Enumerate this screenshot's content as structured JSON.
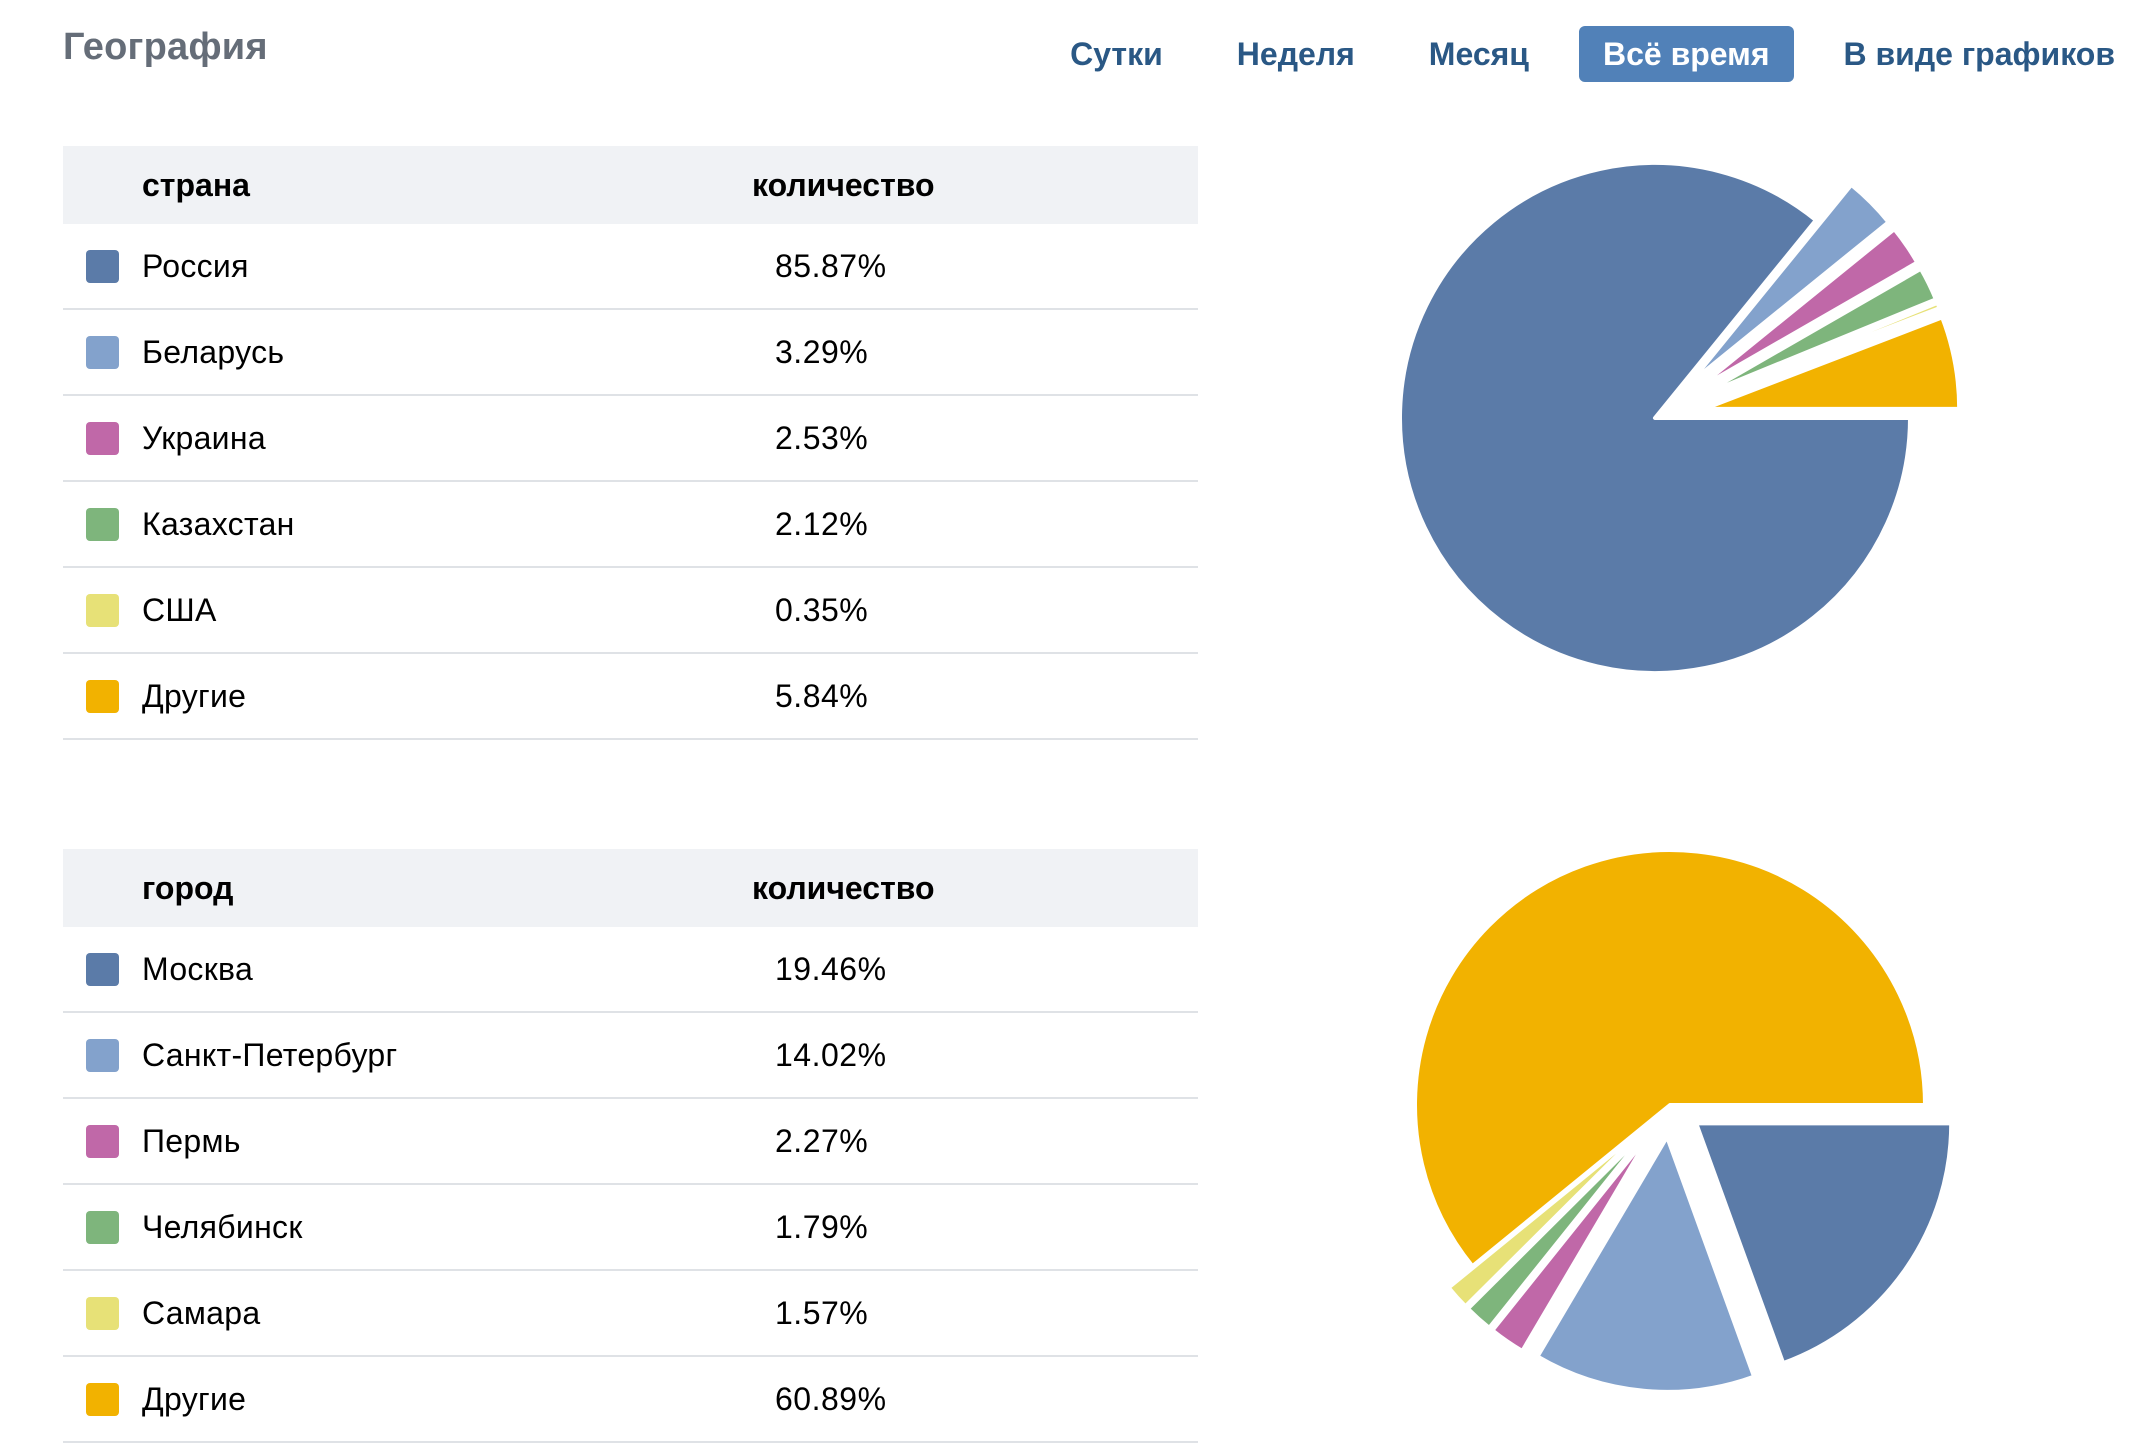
{
  "header": {
    "title": "География",
    "tabs": [
      {
        "label": "Сутки",
        "active": false
      },
      {
        "label": "Неделя",
        "active": false
      },
      {
        "label": "Месяц",
        "active": false
      },
      {
        "label": "Всё время",
        "active": true
      },
      {
        "label": "В виде графиков",
        "active": false
      }
    ]
  },
  "colors": {
    "series1": "#5b7ba8",
    "series2": "#83a2cc",
    "series3": "#c068a8",
    "series4": "#7eb57c",
    "series5": "#e7e177",
    "series6": "#f2b200",
    "accent": "#5181b8",
    "link": "#2a5885"
  },
  "tables": [
    {
      "header": {
        "label": "страна",
        "value": "количество"
      },
      "rows": [
        {
          "label": "Россия",
          "value": "85.87%",
          "color": "#5b7ba8"
        },
        {
          "label": "Беларусь",
          "value": "3.29%",
          "color": "#83a2cc"
        },
        {
          "label": "Украина",
          "value": "2.53%",
          "color": "#c068a8"
        },
        {
          "label": "Казахстан",
          "value": "2.12%",
          "color": "#7eb57c"
        },
        {
          "label": "США",
          "value": "0.35%",
          "color": "#e7e177"
        },
        {
          "label": "Другие",
          "value": "5.84%",
          "color": "#f2b200"
        }
      ]
    },
    {
      "header": {
        "label": "город",
        "value": "количество"
      },
      "rows": [
        {
          "label": "Москва",
          "value": "19.46%",
          "color": "#5b7ba8"
        },
        {
          "label": "Санкт-Петербург",
          "value": "14.02%",
          "color": "#83a2cc"
        },
        {
          "label": "Пермь",
          "value": "2.27%",
          "color": "#c068a8"
        },
        {
          "label": "Челябинск",
          "value": "1.79%",
          "color": "#7eb57c"
        },
        {
          "label": "Самара",
          "value": "1.57%",
          "color": "#e7e177"
        },
        {
          "label": "Другие",
          "value": "60.89%",
          "color": "#f2b200"
        }
      ]
    }
  ],
  "chart_data": [
    {
      "type": "pie",
      "categories": [
        "Россия",
        "Беларусь",
        "Украина",
        "Казахстан",
        "США",
        "Другие"
      ],
      "values": [
        85.87,
        3.29,
        2.53,
        2.12,
        0.35,
        5.84
      ],
      "colors": [
        "#5b7ba8",
        "#83a2cc",
        "#c068a8",
        "#7eb57c",
        "#e7e177",
        "#f2b200"
      ],
      "exploded": [
        "Беларусь",
        "Украина",
        "Казахстан",
        "США",
        "Другие"
      ]
    },
    {
      "type": "pie",
      "categories": [
        "Москва",
        "Санкт-Петербург",
        "Пермь",
        "Челябинск",
        "Самара",
        "Другие"
      ],
      "values": [
        19.46,
        14.02,
        2.27,
        1.79,
        1.57,
        60.89
      ],
      "colors": [
        "#5b7ba8",
        "#83a2cc",
        "#c068a8",
        "#7eb57c",
        "#e7e177",
        "#f2b200"
      ],
      "exploded": [
        "Москва",
        "Санкт-Петербург",
        "Пермь",
        "Челябинск",
        "Самара"
      ]
    }
  ]
}
